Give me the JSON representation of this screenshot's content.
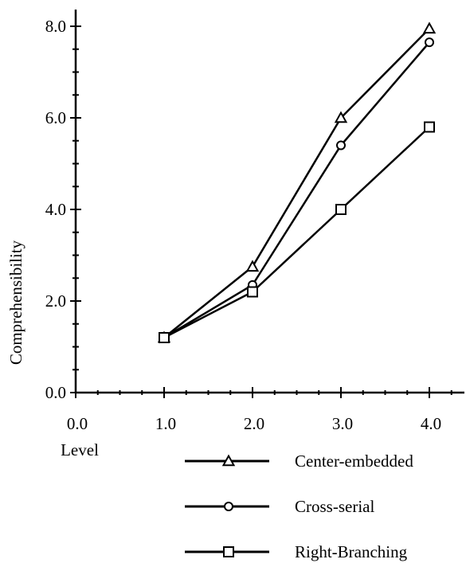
{
  "chart_data": {
    "type": "line",
    "title": "",
    "xlabel": "Level",
    "ylabel": "Comprehensibility",
    "xlim": [
      0,
      4
    ],
    "ylim": [
      0,
      8
    ],
    "x_ticks": [
      "0.0",
      "1.0",
      "2.0",
      "3.0",
      "4.0"
    ],
    "y_ticks": [
      "0.0",
      "2.0",
      "4.0",
      "6.0",
      "8.0"
    ],
    "grid": false,
    "legend_position": "bottom-right",
    "series": [
      {
        "name": "Center-embedded",
        "marker": "triangle",
        "x": [
          1.0,
          2.0,
          3.0,
          4.0
        ],
        "values": [
          1.2,
          2.75,
          6.0,
          7.95
        ]
      },
      {
        "name": "Cross-serial",
        "marker": "circle",
        "x": [
          1.0,
          2.0,
          3.0,
          4.0
        ],
        "values": [
          1.2,
          2.35,
          5.4,
          7.65
        ]
      },
      {
        "name": "Right-Branching",
        "marker": "square",
        "x": [
          1.0,
          2.0,
          3.0,
          4.0
        ],
        "values": [
          1.2,
          2.2,
          4.0,
          5.8
        ]
      }
    ]
  },
  "colors": {
    "line": "#000000",
    "background": "#ffffff"
  }
}
